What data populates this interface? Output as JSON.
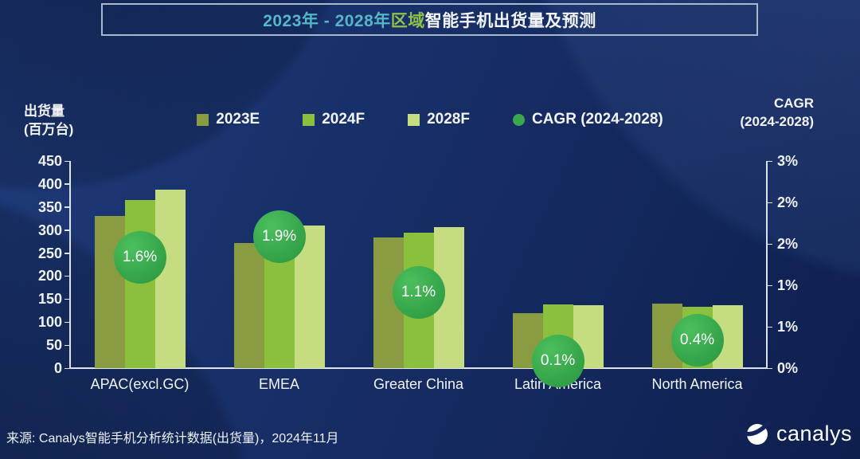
{
  "title": {
    "range": "2023年 - 2028年 ",
    "region": "区域",
    "rest": "智能手机出货量及预测"
  },
  "left_axis": {
    "title_line1": "出货量",
    "title_line2": "(百万台)",
    "ticks": [
      "450",
      "400",
      "350",
      "300",
      "250",
      "200",
      "150",
      "100",
      "50",
      "0"
    ]
  },
  "right_axis": {
    "title_line1": "CAGR",
    "title_line2": "(2024-2028)",
    "ticks": [
      "3%",
      "2%",
      "2%",
      "1%",
      "1%",
      "0%"
    ]
  },
  "legend": [
    {
      "label": "2023E",
      "color": "#8a9c42",
      "shape": "square"
    },
    {
      "label": "2024F",
      "color": "#8bbf3e",
      "shape": "square"
    },
    {
      "label": "2028F",
      "color": "#c5dc80",
      "shape": "square"
    },
    {
      "label": "CAGR (2024-2028)",
      "color": "#3aa94e",
      "shape": "circle"
    }
  ],
  "chart_data": {
    "type": "bar",
    "title": "2023年 - 2028年 区域智能手机出货量及预测",
    "categories": [
      "APAC(excl.GC)",
      "EMEA",
      "Greater China",
      "Latin America",
      "North America"
    ],
    "series": [
      {
        "name": "2023E",
        "color": "#8a9c42",
        "values": [
          330,
          272,
          283,
          120,
          140
        ]
      },
      {
        "name": "2024F",
        "color": "#8bbf3e",
        "values": [
          366,
          288,
          294,
          139,
          134
        ]
      },
      {
        "name": "2028F",
        "color": "#c5dc80",
        "values": [
          387,
          310,
          306,
          137,
          136
        ]
      }
    ],
    "cagr": {
      "name": "CAGR (2024-2028)",
      "color": "#3aa94e",
      "values_pct": [
        1.6,
        1.9,
        1.1,
        0.1,
        0.4
      ],
      "labels": [
        "1.6%",
        "1.9%",
        "1.1%",
        "0.1%",
        "0.4%"
      ]
    },
    "ylabel": "出货量 (百万台)",
    "ylim": [
      0,
      450
    ],
    "y2label": "CAGR (2024-2028)",
    "y2lim": [
      0,
      3
    ],
    "grid": false,
    "legend_position": "top"
  },
  "footer": {
    "source": "来源: Canalys智能手机分析统计数据(出货量)，2024年11月",
    "logo_text": "canalys"
  }
}
